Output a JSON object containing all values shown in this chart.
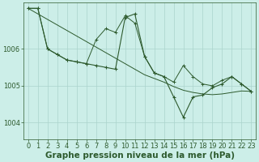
{
  "bg_color": "#cceee8",
  "line_color": "#2d5a2d",
  "grid_color": "#aad4cc",
  "xlabel": "Graphe pression niveau de la mer (hPa)",
  "xlabel_fontsize": 7.5,
  "tick_fontsize": 6,
  "ylim": [
    1003.55,
    1007.25
  ],
  "xlim": [
    -0.5,
    23.5
  ],
  "yticks": [
    1004,
    1005,
    1006
  ],
  "xticks": [
    0,
    1,
    2,
    3,
    4,
    5,
    6,
    7,
    8,
    9,
    10,
    11,
    12,
    13,
    14,
    15,
    16,
    17,
    18,
    19,
    20,
    21,
    22,
    23
  ],
  "series1_x": [
    0,
    1,
    2,
    3,
    4,
    5,
    6,
    7,
    8,
    9,
    10,
    11,
    12,
    13,
    14,
    15,
    16,
    17,
    18,
    19,
    20,
    21,
    22,
    23
  ],
  "series1": [
    1007.1,
    1007.1,
    1006.0,
    1005.85,
    1005.7,
    1005.65,
    1005.6,
    1005.55,
    1005.5,
    1005.45,
    1006.85,
    1006.95,
    1005.8,
    1005.35,
    1005.25,
    1004.7,
    1004.15,
    1004.7,
    1004.75,
    1004.95,
    1005.05,
    1005.25,
    1005.05,
    1004.85
  ],
  "series2_x": [
    0,
    1,
    2,
    3,
    4,
    5,
    6,
    7,
    8,
    9,
    10,
    11,
    12,
    13,
    14,
    15,
    16,
    17,
    18,
    19,
    20,
    21,
    22,
    23
  ],
  "series2": [
    1007.1,
    1007.1,
    1006.0,
    1005.85,
    1005.7,
    1005.65,
    1005.6,
    1006.25,
    1006.55,
    1006.45,
    1006.9,
    1006.7,
    1005.8,
    1005.35,
    1005.25,
    1005.1,
    1005.55,
    1005.25,
    1005.05,
    1005.0,
    1005.15,
    1005.25,
    1005.05,
    1004.85
  ],
  "series3_x": [
    0,
    23
  ],
  "series3": [
    1007.1,
    1004.85
  ],
  "series3_full_x": [
    0,
    1,
    2,
    3,
    4,
    5,
    6,
    7,
    8,
    9,
    10,
    11,
    12,
    13,
    14,
    15,
    16,
    17,
    18,
    19,
    20,
    21,
    22,
    23
  ],
  "series3_full": [
    1007.1,
    1006.95,
    1006.8,
    1006.65,
    1006.5,
    1006.35,
    1006.2,
    1006.05,
    1005.9,
    1005.75,
    1005.6,
    1005.45,
    1005.3,
    1005.2,
    1005.1,
    1004.98,
    1004.88,
    1004.82,
    1004.78,
    1004.76,
    1004.78,
    1004.82,
    1004.86,
    1004.85
  ]
}
